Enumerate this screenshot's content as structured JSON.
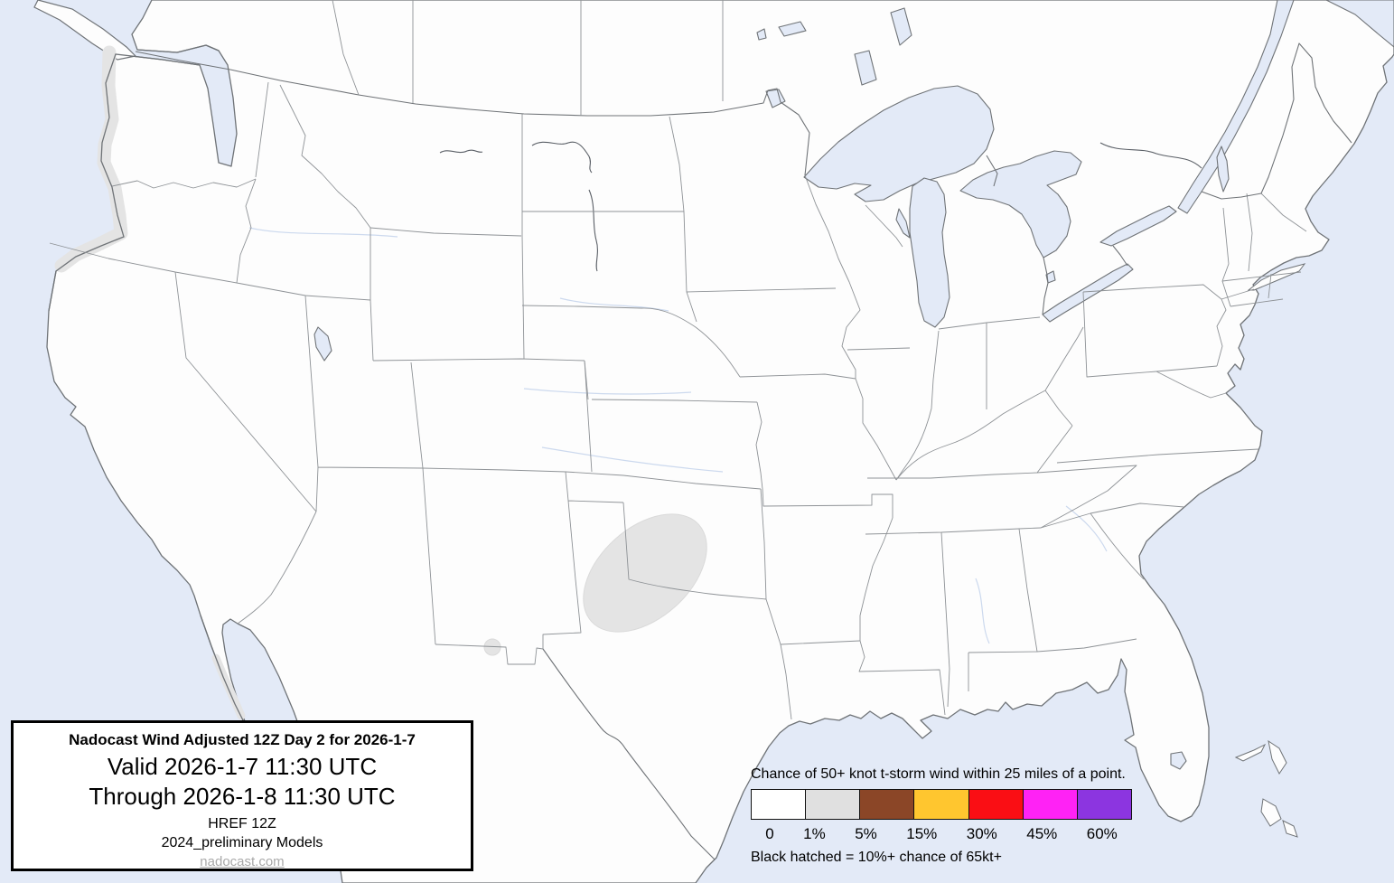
{
  "title_box": {
    "header": "Nadocast Wind Adjusted 12Z Day 2 for 2026-1-7",
    "valid_line": "Valid 2026-1-7 11:30 UTC",
    "through_line": "Through 2026-1-8 11:30 UTC",
    "model_line1": "HREF 12Z",
    "model_line2": "2024_preliminary Models",
    "website_link": "nadocast.com"
  },
  "legend": {
    "title": "Chance of 50+ knot t-storm wind within 25 miles of a point.",
    "note": "Black hatched = 10%+ chance of 65kt+",
    "bins": [
      {
        "label": "0",
        "color": "#ffffff"
      },
      {
        "label": "1%",
        "color": "#e0e0e0"
      },
      {
        "label": "5%",
        "color": "#8b4627"
      },
      {
        "label": "15%",
        "color": "#ffc62f"
      },
      {
        "label": "30%",
        "color": "#fa0e14"
      },
      {
        "label": "45%",
        "color": "#ff22f5"
      },
      {
        "label": "60%",
        "color": "#8c35e0"
      }
    ]
  },
  "map": {
    "colors": {
      "water": "#e3eaf7",
      "land": "#fdfdfd",
      "coastline": "#6f7377",
      "state_border": "#8e9296",
      "risk_1pct_fill": "#e4e4e4"
    },
    "risk_areas": [
      {
        "name": "southern-plains",
        "level": "1%",
        "location": "southwest Oklahoma / northwest Texas"
      },
      {
        "name": "el-paso",
        "level": "1%",
        "location": "near El Paso, Texas"
      },
      {
        "name": "pacific-northwest-coast",
        "level": "1%",
        "location": "Washington / Oregon / N. California coast"
      },
      {
        "name": "baja-coast",
        "level": "1%",
        "location": "Baja California coast"
      }
    ]
  }
}
